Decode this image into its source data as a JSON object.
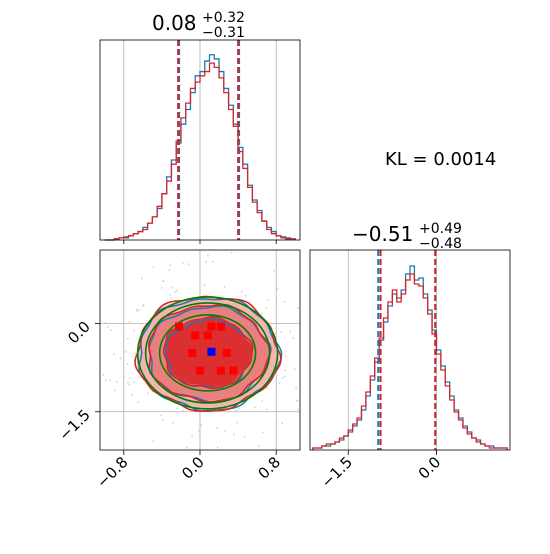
{
  "chart_data": {
    "type": "corner",
    "grid": true,
    "colors": {
      "series_a": "#1f77b4",
      "series_b": "#d62728",
      "truth_contour": "#008000",
      "marker_point": "#0000ff",
      "marker_samples": "#ff0000"
    },
    "annotation": "KL = 0.0014",
    "parameters": [
      {
        "title_value": "0.08",
        "title_plus": "+0.32",
        "title_minus": "−0.31",
        "range": [
          -1.05,
          1.05
        ],
        "quantile_lines_blue": [
          -0.23,
          0.4
        ],
        "quantile_lines_red": [
          -0.23,
          0.4
        ]
      },
      {
        "title_value": "−0.51",
        "title_plus": "+0.49",
        "title_minus": "−0.48",
        "range": [
          -2.15,
          1.25
        ],
        "quantile_lines_blue": [
          -0.99,
          -0.02
        ],
        "quantile_lines_red": [
          -0.95,
          -0.02
        ]
      }
    ],
    "x_ticks": [
      {
        "value": -0.8,
        "label": "−0.8"
      },
      {
        "value": 0.0,
        "label": "0.0"
      },
      {
        "value": 0.8,
        "label": "0.8"
      }
    ],
    "y_ticks_2d": [
      {
        "value": 0.0,
        "label": "0.0"
      },
      {
        "value": -1.5,
        "label": "−1.5"
      }
    ],
    "x_ticks_param2": [
      {
        "value": -1.5,
        "label": "−1.5"
      },
      {
        "value": 0.0,
        "label": "0.0"
      }
    ],
    "marginal_1": {
      "bins": [
        -1.0,
        -0.95,
        -0.9,
        -0.85,
        -0.8,
        -0.75,
        -0.7,
        -0.65,
        -0.6,
        -0.55,
        -0.5,
        -0.45,
        -0.4,
        -0.35,
        -0.3,
        -0.25,
        -0.2,
        -0.15,
        -0.1,
        -0.05,
        0.0,
        0.05,
        0.1,
        0.15,
        0.2,
        0.25,
        0.3,
        0.35,
        0.4,
        0.45,
        0.5,
        0.55,
        0.6,
        0.65,
        0.7,
        0.75,
        0.8,
        0.85,
        0.9,
        0.95,
        1.0
      ],
      "series": [
        {
          "name": "",
          "color": "#1f77b4",
          "values": [
            0,
            0,
            0.5,
            1,
            1,
            2,
            3,
            4,
            6,
            8,
            11,
            15,
            22,
            30,
            38,
            46,
            55,
            62,
            70,
            78,
            80,
            85,
            88,
            86,
            80,
            72,
            64,
            55,
            44,
            36,
            26,
            19,
            14,
            9,
            6,
            4,
            2,
            1.5,
            1,
            0.5
          ]
        },
        {
          "name": "",
          "color": "#d62728",
          "values": [
            0,
            0,
            0.5,
            1,
            1.5,
            2,
            3,
            4,
            5,
            8,
            11,
            16,
            22,
            28,
            36,
            47,
            58,
            65,
            72,
            75,
            78,
            80,
            84,
            82,
            77,
            70,
            62,
            54,
            42,
            34,
            25,
            18,
            13,
            9,
            5,
            3,
            2,
            1,
            0.5,
            0.5
          ]
        }
      ],
      "ymax": 95
    },
    "marginal_2": {
      "bins": [
        -2.1,
        -2.025,
        -1.95,
        -1.875,
        -1.8,
        -1.725,
        -1.65,
        -1.575,
        -1.5,
        -1.425,
        -1.35,
        -1.275,
        -1.2,
        -1.125,
        -1.05,
        -0.975,
        -0.9,
        -0.825,
        -0.75,
        -0.675,
        -0.6,
        -0.525,
        -0.45,
        -0.375,
        -0.3,
        -0.225,
        -0.15,
        -0.075,
        0.0,
        0.075,
        0.15,
        0.225,
        0.3,
        0.375,
        0.45,
        0.525,
        0.6,
        0.675,
        0.75,
        0.825,
        0.9,
        0.975,
        1.05,
        1.125,
        1.2
      ],
      "series": [
        {
          "name": "",
          "color": "#1f77b4",
          "values": [
            1,
            1,
            2,
            2,
            3,
            4,
            5,
            7,
            9,
            12,
            15,
            20,
            27,
            35,
            44,
            55,
            64,
            72,
            78,
            76,
            80,
            88,
            92,
            85,
            86,
            78,
            70,
            60,
            50,
            42,
            34,
            27,
            20,
            16,
            12,
            9,
            6,
            5,
            3,
            2,
            2,
            1,
            1,
            1
          ]
        },
        {
          "name": "",
          "color": "#d62728",
          "values": [
            1,
            1,
            2,
            3,
            3,
            4,
            6,
            7,
            10,
            13,
            16,
            22,
            29,
            37,
            46,
            56,
            66,
            74,
            80,
            74,
            78,
            85,
            88,
            83,
            82,
            76,
            68,
            58,
            48,
            40,
            32,
            25,
            19,
            15,
            11,
            8,
            6,
            4,
            3,
            2,
            1,
            1,
            1,
            1
          ]
        }
      ],
      "ymax": 100
    },
    "joint": {
      "blue_point": [
        0.12,
        -0.48
      ],
      "red_samples": [
        [
          -0.22,
          -0.05
        ],
        [
          0.12,
          -0.05
        ],
        [
          0.22,
          -0.05
        ],
        [
          -0.05,
          -0.2
        ],
        [
          0.08,
          -0.2
        ],
        [
          -0.08,
          -0.5
        ],
        [
          0.28,
          -0.5
        ],
        [
          0.0,
          -0.8
        ],
        [
          0.22,
          -0.8
        ],
        [
          0.35,
          -0.8
        ]
      ]
    }
  }
}
